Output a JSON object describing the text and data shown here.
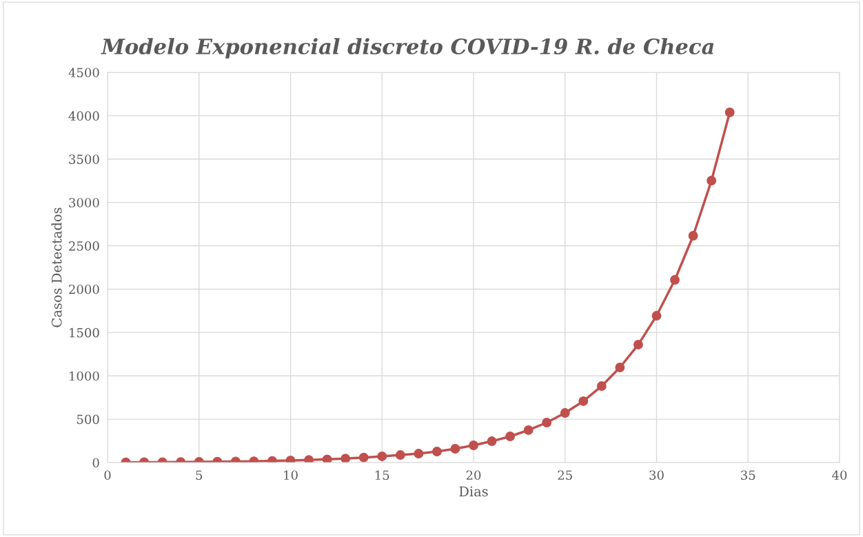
{
  "chart_data": {
    "type": "line",
    "title": "Modelo Exponencial discreto COVID-19 R. de Checa",
    "xlabel": "Dias",
    "ylabel": "Casos Detectados",
    "x": [
      1,
      2,
      3,
      4,
      5,
      6,
      7,
      8,
      9,
      10,
      11,
      12,
      13,
      14,
      15,
      16,
      17,
      18,
      19,
      20,
      21,
      22,
      23,
      24,
      25,
      26,
      27,
      28,
      29,
      30,
      31,
      32,
      33,
      34
    ],
    "series": [
      {
        "color": "#c0504d",
        "values": [
          3,
          4,
          5,
          6,
          8,
          10,
          12,
          15,
          19,
          24,
          30,
          37,
          46,
          58,
          72,
          87,
          103,
          127,
          159,
          199,
          246,
          302,
          374,
          461,
          572,
          708,
          882,
          1097,
          1360,
          1693,
          2107,
          2616,
          3252,
          4039
        ]
      }
    ],
    "xlim": [
      0,
      40
    ],
    "xticks": [
      0,
      5,
      10,
      15,
      20,
      25,
      30,
      35,
      40
    ],
    "ylim": [
      0,
      4500
    ],
    "yticks": [
      0,
      500,
      1000,
      1500,
      2000,
      2500,
      3000,
      3500,
      4000,
      4500
    ],
    "grid": true,
    "marker": "circle",
    "line_style": "solid"
  }
}
